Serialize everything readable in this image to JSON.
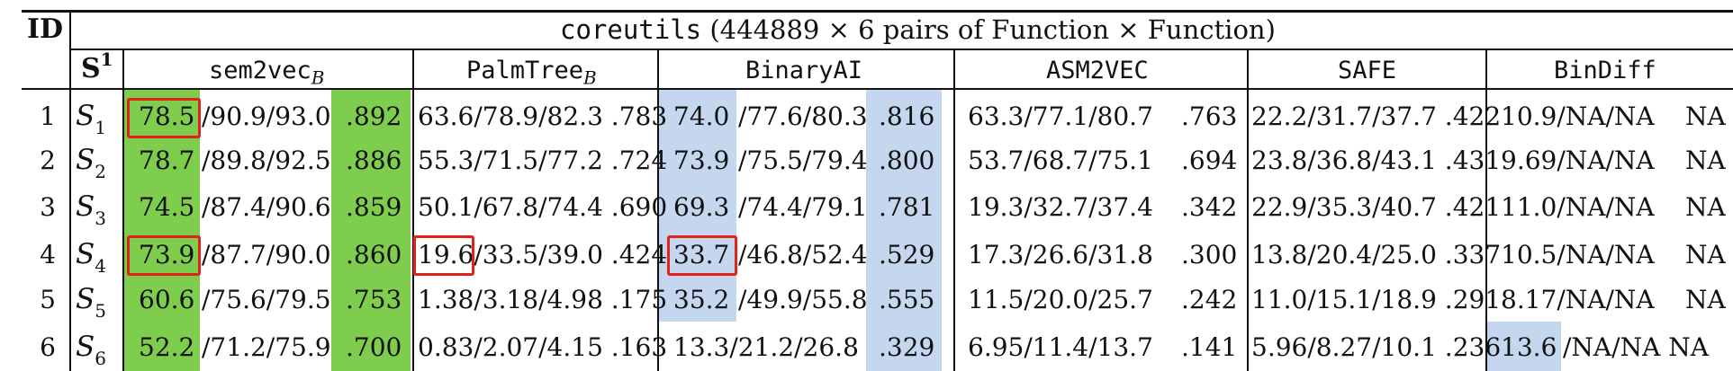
{
  "table": {
    "id_header": "ID",
    "set_header": "S",
    "set_header_sup": "1",
    "title": {
      "prefix": "coreutils",
      "rest": " (444889 × 6 pairs of Function × Function)"
    },
    "tools": [
      {
        "name": "sem2vec",
        "sub": "B"
      },
      {
        "name": "PalmTree",
        "sub": "B"
      },
      {
        "name": "BinaryAI",
        "sub": ""
      },
      {
        "name": "ASM2VEC",
        "sub": ""
      },
      {
        "name": "SAFE",
        "sub": ""
      },
      {
        "name": "BinDiff",
        "sub": ""
      }
    ],
    "rows": [
      {
        "id": "1",
        "set": "S",
        "set_sub": "1",
        "sem2vec": [
          "78.5",
          "/90.9/93.0",
          ".892"
        ],
        "palmtree": "63.6/78.9/82.3 .783",
        "binaryai": [
          "74.0",
          "/77.6/80.3",
          ".816"
        ],
        "asm2vec": [
          "63.3/77.1/80.7",
          ".763"
        ],
        "safe": "22.2/31.7/37.7 .422",
        "bindiff": [
          "10.9/NA/NA",
          "NA"
        ]
      },
      {
        "id": "2",
        "set": "S",
        "set_sub": "2",
        "sem2vec": [
          "78.7",
          "/89.8/92.5",
          ".886"
        ],
        "palmtree": "55.3/71.5/77.2 .724",
        "binaryai": [
          "73.9",
          "/75.5/79.4",
          ".800"
        ],
        "asm2vec": [
          "53.7/68.7/75.1",
          ".694"
        ],
        "safe": "23.8/36.8/43.1 .431",
        "bindiff": [
          "9.69/NA/NA",
          "NA"
        ]
      },
      {
        "id": "3",
        "set": "S",
        "set_sub": "3",
        "sem2vec": [
          "74.5",
          "/87.4/90.6",
          ".859"
        ],
        "palmtree": "50.1/67.8/74.4 .690",
        "binaryai": [
          "69.3",
          "/74.4/79.1",
          ".781"
        ],
        "asm2vec": [
          "19.3/32.7/37.4",
          ".342"
        ],
        "safe": "22.9/35.3/40.7 .421",
        "bindiff": [
          "11.0/NA/NA",
          "NA"
        ]
      },
      {
        "id": "4",
        "set": "S",
        "set_sub": "4",
        "sem2vec": [
          "73.9",
          "/87.7/90.0",
          ".860"
        ],
        "palmtree": "19.6/33.5/39.0 .424",
        "binaryai": [
          "33.7",
          "/46.8/52.4",
          ".529"
        ],
        "asm2vec": [
          "17.3/26.6/31.8",
          ".300"
        ],
        "safe": "13.8/20.4/25.0 .337",
        "bindiff": [
          "10.5/NA/NA",
          "NA"
        ]
      },
      {
        "id": "5",
        "set": "S",
        "set_sub": "5",
        "sem2vec": [
          "60.6",
          "/75.6/79.5",
          ".753"
        ],
        "palmtree": "1.38/3.18/4.98 .175",
        "binaryai": [
          "35.2",
          "/49.9/55.8",
          ".555"
        ],
        "asm2vec": [
          "11.5/20.0/25.7",
          ".242"
        ],
        "safe": "11.0/15.1/18.9 .291",
        "bindiff": [
          "8.17/NA/NA",
          "NA"
        ]
      },
      {
        "id": "6",
        "set": "S",
        "set_sub": "6",
        "sem2vec": [
          "52.2",
          "/71.2/75.9",
          ".700"
        ],
        "palmtree": "0.83/2.07/4.15 .163",
        "binaryai": [
          "13.3/21.2/26.8",
          "",
          ".329"
        ],
        "asm2vec": [
          "6.95/11.4/13.7",
          ".141"
        ],
        "safe": "5.96/8.27/10.1 .236",
        "bindiff": [
          "13.6",
          "/NA/NA NA"
        ]
      }
    ]
  },
  "colors": {
    "green_highlight": "#7fcd4d",
    "blue_highlight": "#c5d7ee",
    "red_box": "#e0221b"
  }
}
